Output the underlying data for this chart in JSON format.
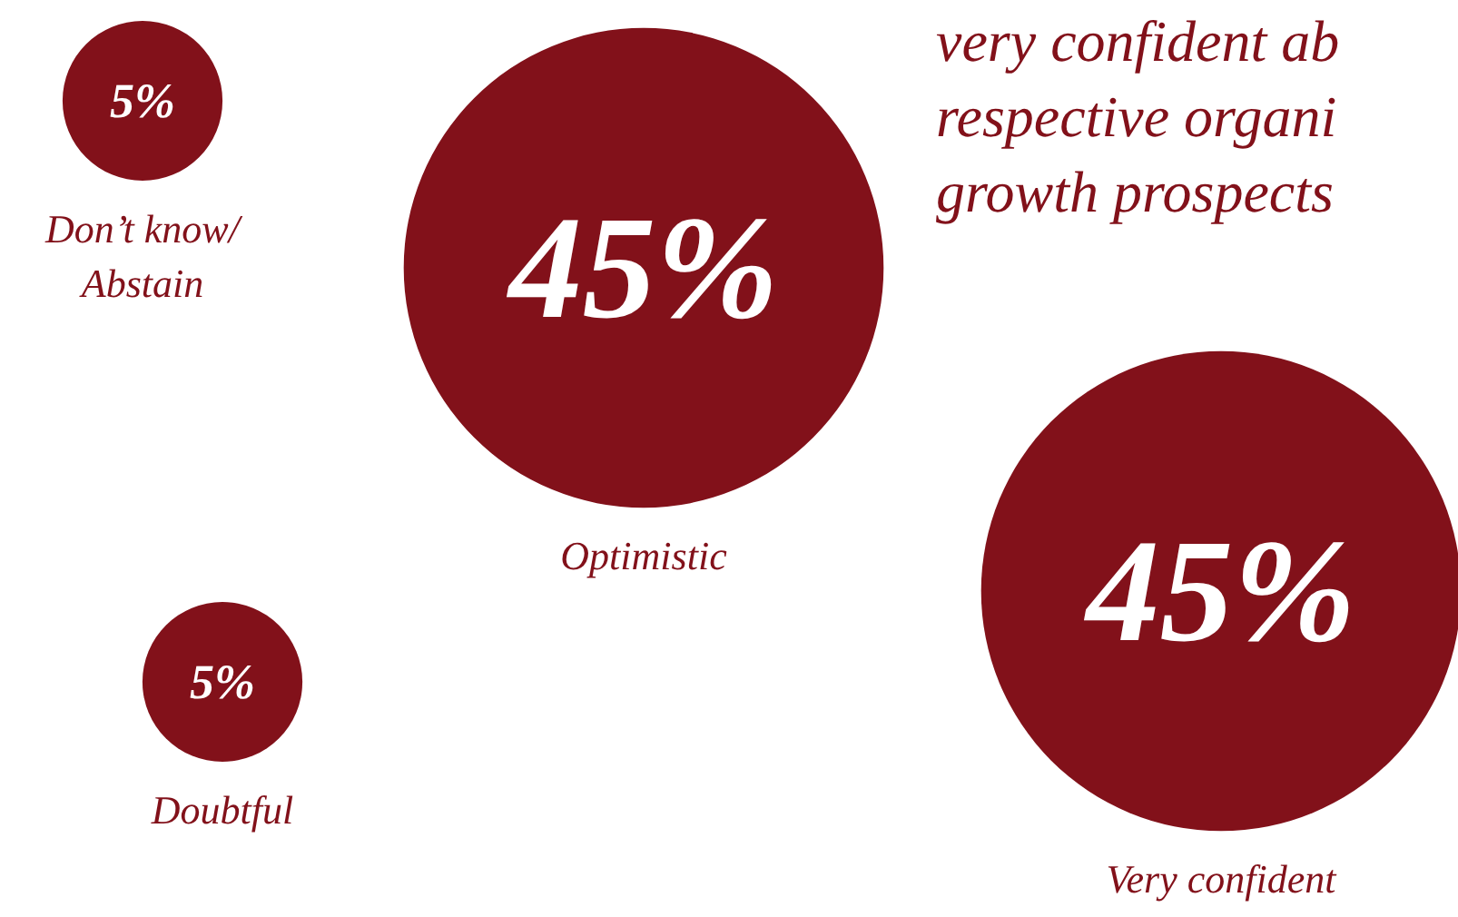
{
  "chart_data": {
    "type": "other",
    "categories": [
      "Don’t know/\nAbstain",
      "Optimistic",
      "Doubtful",
      "Very confident"
    ],
    "values": [
      5,
      45,
      5,
      45
    ],
    "value_labels": [
      "5%",
      "45%",
      "5%",
      "45%"
    ],
    "colors": [
      "#82111a",
      "#82111a",
      "#82111a",
      "#82111a"
    ],
    "annotations": [
      "very confident ab\nrespective organi\ngrowth prospects"
    ]
  }
}
